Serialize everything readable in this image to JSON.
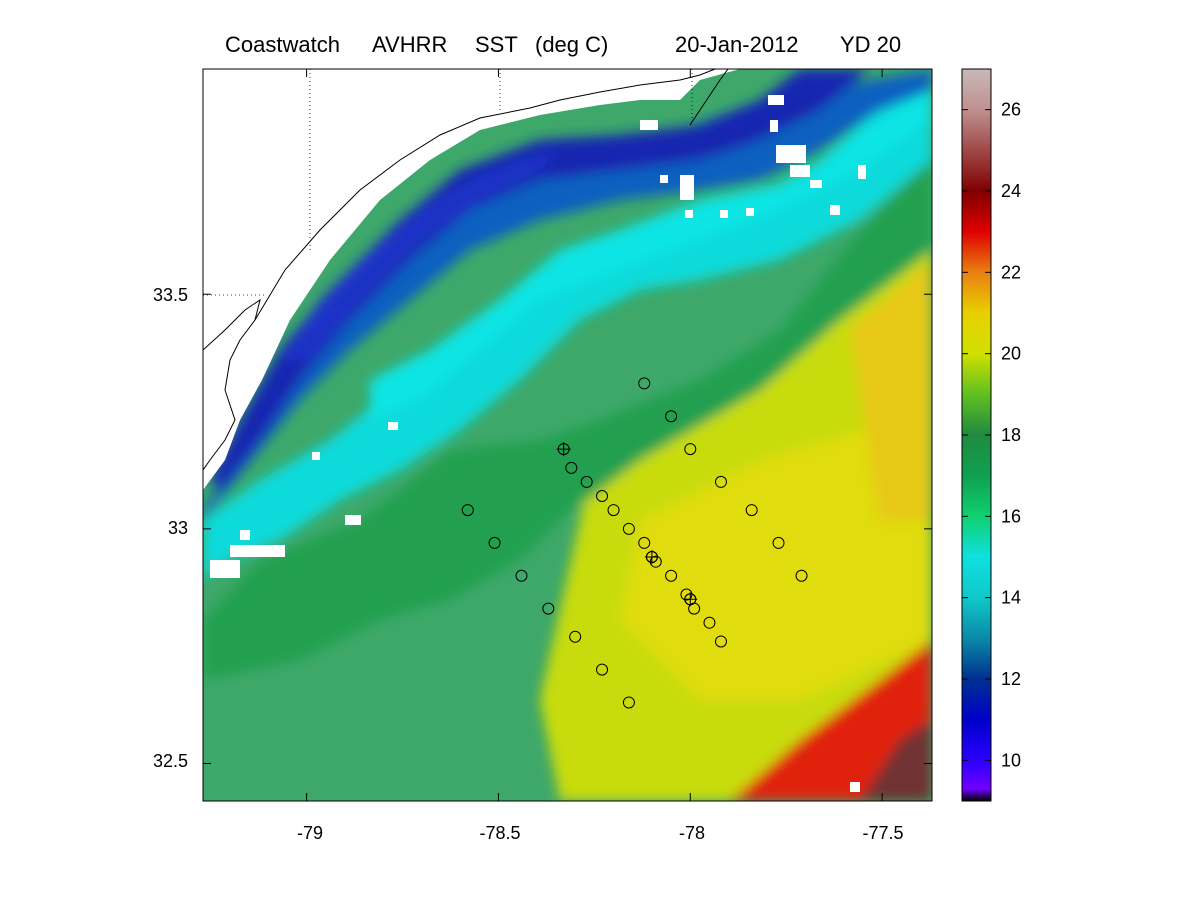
{
  "title": {
    "source": "Coastwatch",
    "sensor": "AVHRR",
    "variable": "SST",
    "units": "(deg C)",
    "date": "20-Jan-2012",
    "yearday": "YD 20"
  },
  "map": {
    "type": "sea-surface-temperature-map",
    "lon_range": [
      -79.27,
      -77.37
    ],
    "lat_range": [
      32.42,
      33.98
    ],
    "lon_ticks": [
      "-79",
      "-78.5",
      "-78",
      "-77.5"
    ],
    "lon_tick_values": [
      -79,
      -78.5,
      -78,
      -77.5
    ],
    "lat_ticks": [
      "32.5",
      "33",
      "33.5"
    ],
    "lat_tick_values": [
      32.5,
      33,
      33.5
    ],
    "colors": {
      "land": "#ffffff",
      "coastline": "#000000",
      "marker": "#000000"
    }
  },
  "colorbar": {
    "range": [
      9,
      27
    ],
    "ticks": [
      "10",
      "12",
      "14",
      "16",
      "18",
      "20",
      "22",
      "24",
      "26"
    ],
    "tick_values": [
      10,
      12,
      14,
      16,
      18,
      20,
      22,
      24,
      26
    ],
    "stops": [
      {
        "value": 9,
        "color": "#000000"
      },
      {
        "value": 9.3,
        "color": "#7000ff"
      },
      {
        "value": 10,
        "color": "#2a00ff"
      },
      {
        "value": 11,
        "color": "#0000c8"
      },
      {
        "value": 12,
        "color": "#003090"
      },
      {
        "value": 13,
        "color": "#0a8aa8"
      },
      {
        "value": 14,
        "color": "#10c8c8"
      },
      {
        "value": 15,
        "color": "#10e0e0"
      },
      {
        "value": 16,
        "color": "#10d070"
      },
      {
        "value": 17,
        "color": "#10a050"
      },
      {
        "value": 18,
        "color": "#208a40"
      },
      {
        "value": 19,
        "color": "#60c020"
      },
      {
        "value": 20,
        "color": "#d0e000"
      },
      {
        "value": 21,
        "color": "#e8d000"
      },
      {
        "value": 22,
        "color": "#e88010"
      },
      {
        "value": 23,
        "color": "#e00000"
      },
      {
        "value": 24,
        "color": "#800000"
      },
      {
        "value": 25,
        "color": "#a04848"
      },
      {
        "value": 26,
        "color": "#c09090"
      },
      {
        "value": 27,
        "color": "#c8b8b8"
      }
    ]
  },
  "stations": {
    "circles": [
      [
        -78.12,
        33.31
      ],
      [
        -78.05,
        33.24
      ],
      [
        -78.0,
        33.17
      ],
      [
        -77.92,
        33.1
      ],
      [
        -77.84,
        33.04
      ],
      [
        -77.77,
        32.97
      ],
      [
        -77.71,
        32.9
      ],
      [
        -78.31,
        33.13
      ],
      [
        -78.27,
        33.1
      ],
      [
        -78.23,
        33.07
      ],
      [
        -78.2,
        33.04
      ],
      [
        -78.16,
        33.0
      ],
      [
        -78.12,
        32.97
      ],
      [
        -78.09,
        32.93
      ],
      [
        -78.05,
        32.9
      ],
      [
        -78.01,
        32.86
      ],
      [
        -77.99,
        32.83
      ],
      [
        -77.95,
        32.8
      ],
      [
        -77.92,
        32.76
      ],
      [
        -78.58,
        33.04
      ],
      [
        -78.51,
        32.97
      ],
      [
        -78.44,
        32.9
      ],
      [
        -78.37,
        32.83
      ],
      [
        -78.3,
        32.77
      ],
      [
        -78.23,
        32.7
      ],
      [
        -78.16,
        32.63
      ],
      [
        -78.1,
        32.94
      ],
      [
        -78.0,
        32.85
      ]
    ],
    "crosses": [
      [
        -78.33,
        33.17
      ],
      [
        -78.1,
        32.94
      ],
      [
        -78.0,
        32.85
      ]
    ]
  }
}
